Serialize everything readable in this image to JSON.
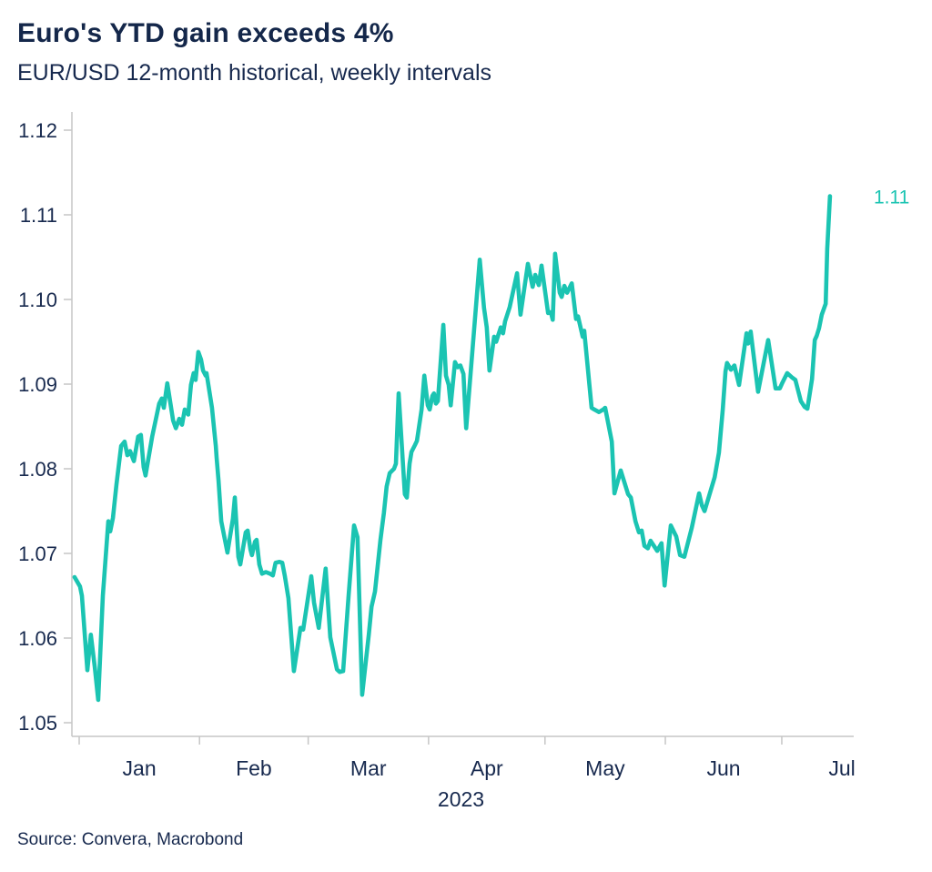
{
  "header": {
    "title": "Euro's YTD gain exceeds 4%",
    "subtitle": "EUR/USD 12-month historical, weekly intervals"
  },
  "footer": {
    "source": "Source: Convera, Macrobond"
  },
  "colors": {
    "line_teal": "#1BC4B2",
    "text_navy": "#17294E",
    "axis_gray": "#C6C6C6",
    "background": "#FFFFFF"
  },
  "chart_data": {
    "type": "line",
    "title": "Euro's YTD gain exceeds 4%",
    "subtitle": "EUR/USD 12-month historical, weekly intervals",
    "grid": false,
    "legend_position": "none (end-of-line value label)",
    "x_axis": {
      "year_label": "2023",
      "month_labels": [
        "Jan",
        "Feb",
        "Mar",
        "Apr",
        "May",
        "Jun",
        "Jul"
      ],
      "month_tick_days": [
        0,
        31,
        59,
        90,
        120,
        151,
        181
      ],
      "month_label_days": [
        15.5,
        45,
        74.5,
        105,
        135.5,
        166,
        196.5
      ],
      "range_days": [
        -1.9,
        199.6
      ]
    },
    "y_axis": {
      "min": 1.05,
      "max": 1.12,
      "tick_step": 0.01,
      "tick_labels": [
        "1.05",
        "1.06",
        "1.07",
        "1.08",
        "1.09",
        "1.10",
        "1.11",
        "1.12"
      ]
    },
    "series": [
      {
        "name": "EUR/USD",
        "end_label": "1.11",
        "color": "#1BC4B2",
        "points": [
          [
            -1.2,
            1.0672
          ],
          [
            0.2,
            1.0661
          ],
          [
            0.7,
            1.065
          ],
          [
            2.1,
            1.0562
          ],
          [
            3.0,
            1.0604
          ],
          [
            4.0,
            1.0566
          ],
          [
            4.9,
            1.0527
          ],
          [
            6.1,
            1.065
          ],
          [
            7.5,
            1.0738
          ],
          [
            8.0,
            1.0726
          ],
          [
            8.7,
            1.0742
          ],
          [
            9.6,
            1.0781
          ],
          [
            10.8,
            1.0827
          ],
          [
            11.7,
            1.0832
          ],
          [
            12.4,
            1.0816
          ],
          [
            13.1,
            1.0821
          ],
          [
            14.1,
            1.0809
          ],
          [
            15.2,
            1.0838
          ],
          [
            15.9,
            1.084
          ],
          [
            16.6,
            1.0802
          ],
          [
            17.1,
            1.0792
          ],
          [
            18.8,
            1.0838
          ],
          [
            20.6,
            1.0877
          ],
          [
            21.3,
            1.0883
          ],
          [
            21.8,
            1.0872
          ],
          [
            22.7,
            1.0901
          ],
          [
            24.2,
            1.0857
          ],
          [
            24.9,
            1.0848
          ],
          [
            25.8,
            1.0859
          ],
          [
            26.5,
            1.0852
          ],
          [
            27.2,
            1.087
          ],
          [
            28.1,
            1.0864
          ],
          [
            28.8,
            1.0899
          ],
          [
            29.5,
            1.0913
          ],
          [
            30.0,
            1.0905
          ],
          [
            30.7,
            1.0938
          ],
          [
            31.4,
            1.0929
          ],
          [
            31.9,
            1.0916
          ],
          [
            32.6,
            1.091
          ],
          [
            32.8,
            1.0913
          ],
          [
            34.2,
            1.0872
          ],
          [
            35.2,
            1.0827
          ],
          [
            35.4,
            1.0813
          ],
          [
            35.9,
            1.0786
          ],
          [
            36.6,
            1.0738
          ],
          [
            38.2,
            1.0701
          ],
          [
            39.6,
            1.0741
          ],
          [
            40.1,
            1.0766
          ],
          [
            41.0,
            1.0696
          ],
          [
            41.5,
            1.0687
          ],
          [
            42.9,
            1.0725
          ],
          [
            43.4,
            1.0727
          ],
          [
            44.1,
            1.0705
          ],
          [
            44.5,
            1.0698
          ],
          [
            45.3,
            1.0714
          ],
          [
            45.7,
            1.0716
          ],
          [
            46.4,
            1.0687
          ],
          [
            47.1,
            1.0676
          ],
          [
            48.1,
            1.0678
          ],
          [
            49.2,
            1.0676
          ],
          [
            49.9,
            1.0674
          ],
          [
            50.6,
            1.0689
          ],
          [
            51.6,
            1.069
          ],
          [
            52.3,
            1.0689
          ],
          [
            53.0,
            1.0673
          ],
          [
            53.9,
            1.0647
          ],
          [
            55.3,
            1.0561
          ],
          [
            57.0,
            1.0612
          ],
          [
            57.7,
            1.061
          ],
          [
            59.8,
            1.0673
          ],
          [
            60.5,
            1.0642
          ],
          [
            61.7,
            1.0612
          ],
          [
            63.5,
            1.0682
          ],
          [
            64.7,
            1.0601
          ],
          [
            66.4,
            1.0563
          ],
          [
            67.1,
            1.056
          ],
          [
            68.0,
            1.0561
          ],
          [
            69.4,
            1.065
          ],
          [
            70.8,
            1.0733
          ],
          [
            71.7,
            1.0719
          ],
          [
            72.9,
            1.0533
          ],
          [
            74.6,
            1.0604
          ],
          [
            75.3,
            1.0637
          ],
          [
            76.2,
            1.0655
          ],
          [
            77.6,
            1.0716
          ],
          [
            78.5,
            1.0748
          ],
          [
            79.2,
            1.0779
          ],
          [
            80.0,
            1.0795
          ],
          [
            81.1,
            1.08
          ],
          [
            81.6,
            1.0806
          ],
          [
            82.3,
            1.0889
          ],
          [
            83.0,
            1.0836
          ],
          [
            83.9,
            1.077
          ],
          [
            84.4,
            1.0766
          ],
          [
            85.1,
            1.0806
          ],
          [
            85.6,
            1.082
          ],
          [
            86.5,
            1.0828
          ],
          [
            87.0,
            1.0833
          ],
          [
            88.2,
            1.087
          ],
          [
            88.9,
            1.091
          ],
          [
            89.8,
            1.0875
          ],
          [
            90.3,
            1.087
          ],
          [
            91.0,
            1.0886
          ],
          [
            91.4,
            1.0889
          ],
          [
            91.9,
            1.0877
          ],
          [
            92.4,
            1.088
          ],
          [
            93.8,
            1.097
          ],
          [
            94.5,
            1.091
          ],
          [
            95.2,
            1.0899
          ],
          [
            95.7,
            1.0875
          ],
          [
            96.8,
            1.0926
          ],
          [
            97.5,
            1.092
          ],
          [
            98.2,
            1.0922
          ],
          [
            99.0,
            1.0912
          ],
          [
            99.7,
            1.0848
          ],
          [
            103.2,
            1.1047
          ],
          [
            104.3,
            1.099
          ],
          [
            105.0,
            1.0967
          ],
          [
            105.7,
            1.0916
          ],
          [
            106.9,
            1.0956
          ],
          [
            107.4,
            1.095
          ],
          [
            108.6,
            1.0967
          ],
          [
            109.2,
            1.096
          ],
          [
            109.7,
            1.0974
          ],
          [
            110.9,
            1.0991
          ],
          [
            112.8,
            1.1031
          ],
          [
            113.7,
            1.0982
          ],
          [
            115.6,
            1.1042
          ],
          [
            116.8,
            1.1015
          ],
          [
            117.5,
            1.1029
          ],
          [
            118.4,
            1.1017
          ],
          [
            119.1,
            1.104
          ],
          [
            120.8,
            1.0984
          ],
          [
            121.5,
            1.0985
          ],
          [
            122.0,
            1.0976
          ],
          [
            122.6,
            1.1054
          ],
          [
            123.8,
            1.1008
          ],
          [
            124.3,
            1.1003
          ],
          [
            125.0,
            1.1016
          ],
          [
            125.7,
            1.1008
          ],
          [
            126.9,
            1.1019
          ],
          [
            128.0,
            1.0977
          ],
          [
            128.5,
            1.098
          ],
          [
            129.7,
            1.0956
          ],
          [
            130.1,
            1.0963
          ],
          [
            132.0,
            1.0872
          ],
          [
            132.7,
            1.087
          ],
          [
            133.9,
            1.0867
          ],
          [
            135.0,
            1.087
          ],
          [
            135.5,
            1.0872
          ],
          [
            137.2,
            1.0832
          ],
          [
            137.9,
            1.0771
          ],
          [
            139.5,
            1.0798
          ],
          [
            141.4,
            1.077
          ],
          [
            142.1,
            1.0766
          ],
          [
            143.3,
            1.0738
          ],
          [
            144.2,
            1.0725
          ],
          [
            144.9,
            1.0727
          ],
          [
            145.6,
            1.0709
          ],
          [
            146.5,
            1.0706
          ],
          [
            147.2,
            1.0715
          ],
          [
            148.9,
            1.0703
          ],
          [
            150.0,
            1.0712
          ],
          [
            150.8,
            1.0662
          ],
          [
            152.4,
            1.0733
          ],
          [
            153.8,
            1.072
          ],
          [
            154.8,
            1.0698
          ],
          [
            155.9,
            1.0696
          ],
          [
            157.8,
            1.073
          ],
          [
            159.7,
            1.0771
          ],
          [
            160.4,
            1.0757
          ],
          [
            161.1,
            1.075
          ],
          [
            163.7,
            1.079
          ],
          [
            164.8,
            1.0819
          ],
          [
            165.8,
            1.087
          ],
          [
            166.5,
            1.0915
          ],
          [
            166.9,
            1.0925
          ],
          [
            167.9,
            1.0917
          ],
          [
            168.8,
            1.0922
          ],
          [
            170.0,
            1.0899
          ],
          [
            171.9,
            1.096
          ],
          [
            172.3,
            1.0948
          ],
          [
            173.0,
            1.0962
          ],
          [
            174.9,
            1.0891
          ],
          [
            177.5,
            1.0952
          ],
          [
            179.4,
            1.0895
          ],
          [
            180.5,
            1.0895
          ],
          [
            181.2,
            1.0902
          ],
          [
            182.4,
            1.0913
          ],
          [
            183.6,
            1.0908
          ],
          [
            184.5,
            1.0905
          ],
          [
            185.9,
            1.088
          ],
          [
            186.9,
            1.0873
          ],
          [
            187.6,
            1.0871
          ],
          [
            188.8,
            1.0906
          ],
          [
            189.5,
            1.0952
          ],
          [
            190.0,
            1.0957
          ],
          [
            190.6,
            1.0966
          ],
          [
            191.3,
            1.0982
          ],
          [
            192.3,
            1.0995
          ],
          [
            192.7,
            1.106
          ],
          [
            193.4,
            1.1122
          ]
        ]
      }
    ]
  }
}
